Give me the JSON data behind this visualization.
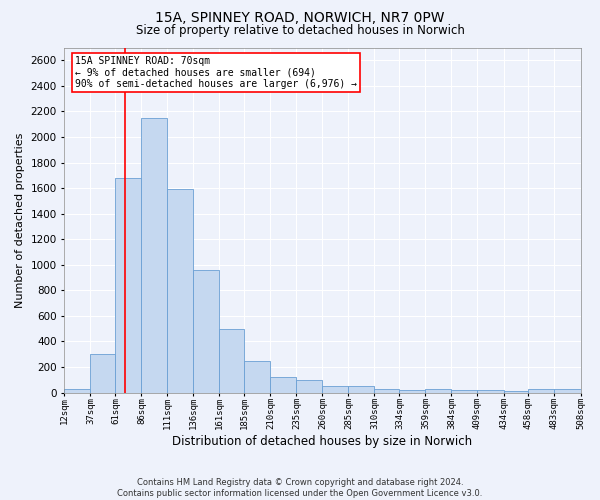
{
  "title1": "15A, SPINNEY ROAD, NORWICH, NR7 0PW",
  "title2": "Size of property relative to detached houses in Norwich",
  "xlabel": "Distribution of detached houses by size in Norwich",
  "ylabel": "Number of detached properties",
  "footer1": "Contains HM Land Registry data © Crown copyright and database right 2024.",
  "footer2": "Contains public sector information licensed under the Open Government Licence v3.0.",
  "annotation_title": "15A SPINNEY ROAD: 70sqm",
  "annotation_line1": "← 9% of detached houses are smaller (694)",
  "annotation_line2": "90% of semi-detached houses are larger (6,976) →",
  "bar_color": "#c5d8f0",
  "bar_edge_color": "#6a9fd4",
  "vline_color": "red",
  "vline_x": 70,
  "bin_edges": [
    12,
    37,
    61,
    86,
    111,
    136,
    161,
    185,
    210,
    235,
    260,
    285,
    310,
    334,
    359,
    384,
    409,
    434,
    458,
    483,
    508
  ],
  "bar_heights": [
    25,
    300,
    1680,
    2150,
    1590,
    960,
    500,
    248,
    120,
    100,
    50,
    50,
    30,
    20,
    30,
    20,
    20,
    15,
    25,
    25
  ],
  "ylim": [
    0,
    2700
  ],
  "yticks": [
    0,
    200,
    400,
    600,
    800,
    1000,
    1200,
    1400,
    1600,
    1800,
    2000,
    2200,
    2400,
    2600
  ],
  "background_color": "#eef2fb",
  "grid_color": "#ffffff",
  "title1_fontsize": 10,
  "title2_fontsize": 8.5,
  "xlabel_fontsize": 8.5,
  "ylabel_fontsize": 8,
  "xtick_fontsize": 6.5,
  "ytick_fontsize": 7.5,
  "footer_fontsize": 6,
  "annot_fontsize": 7
}
